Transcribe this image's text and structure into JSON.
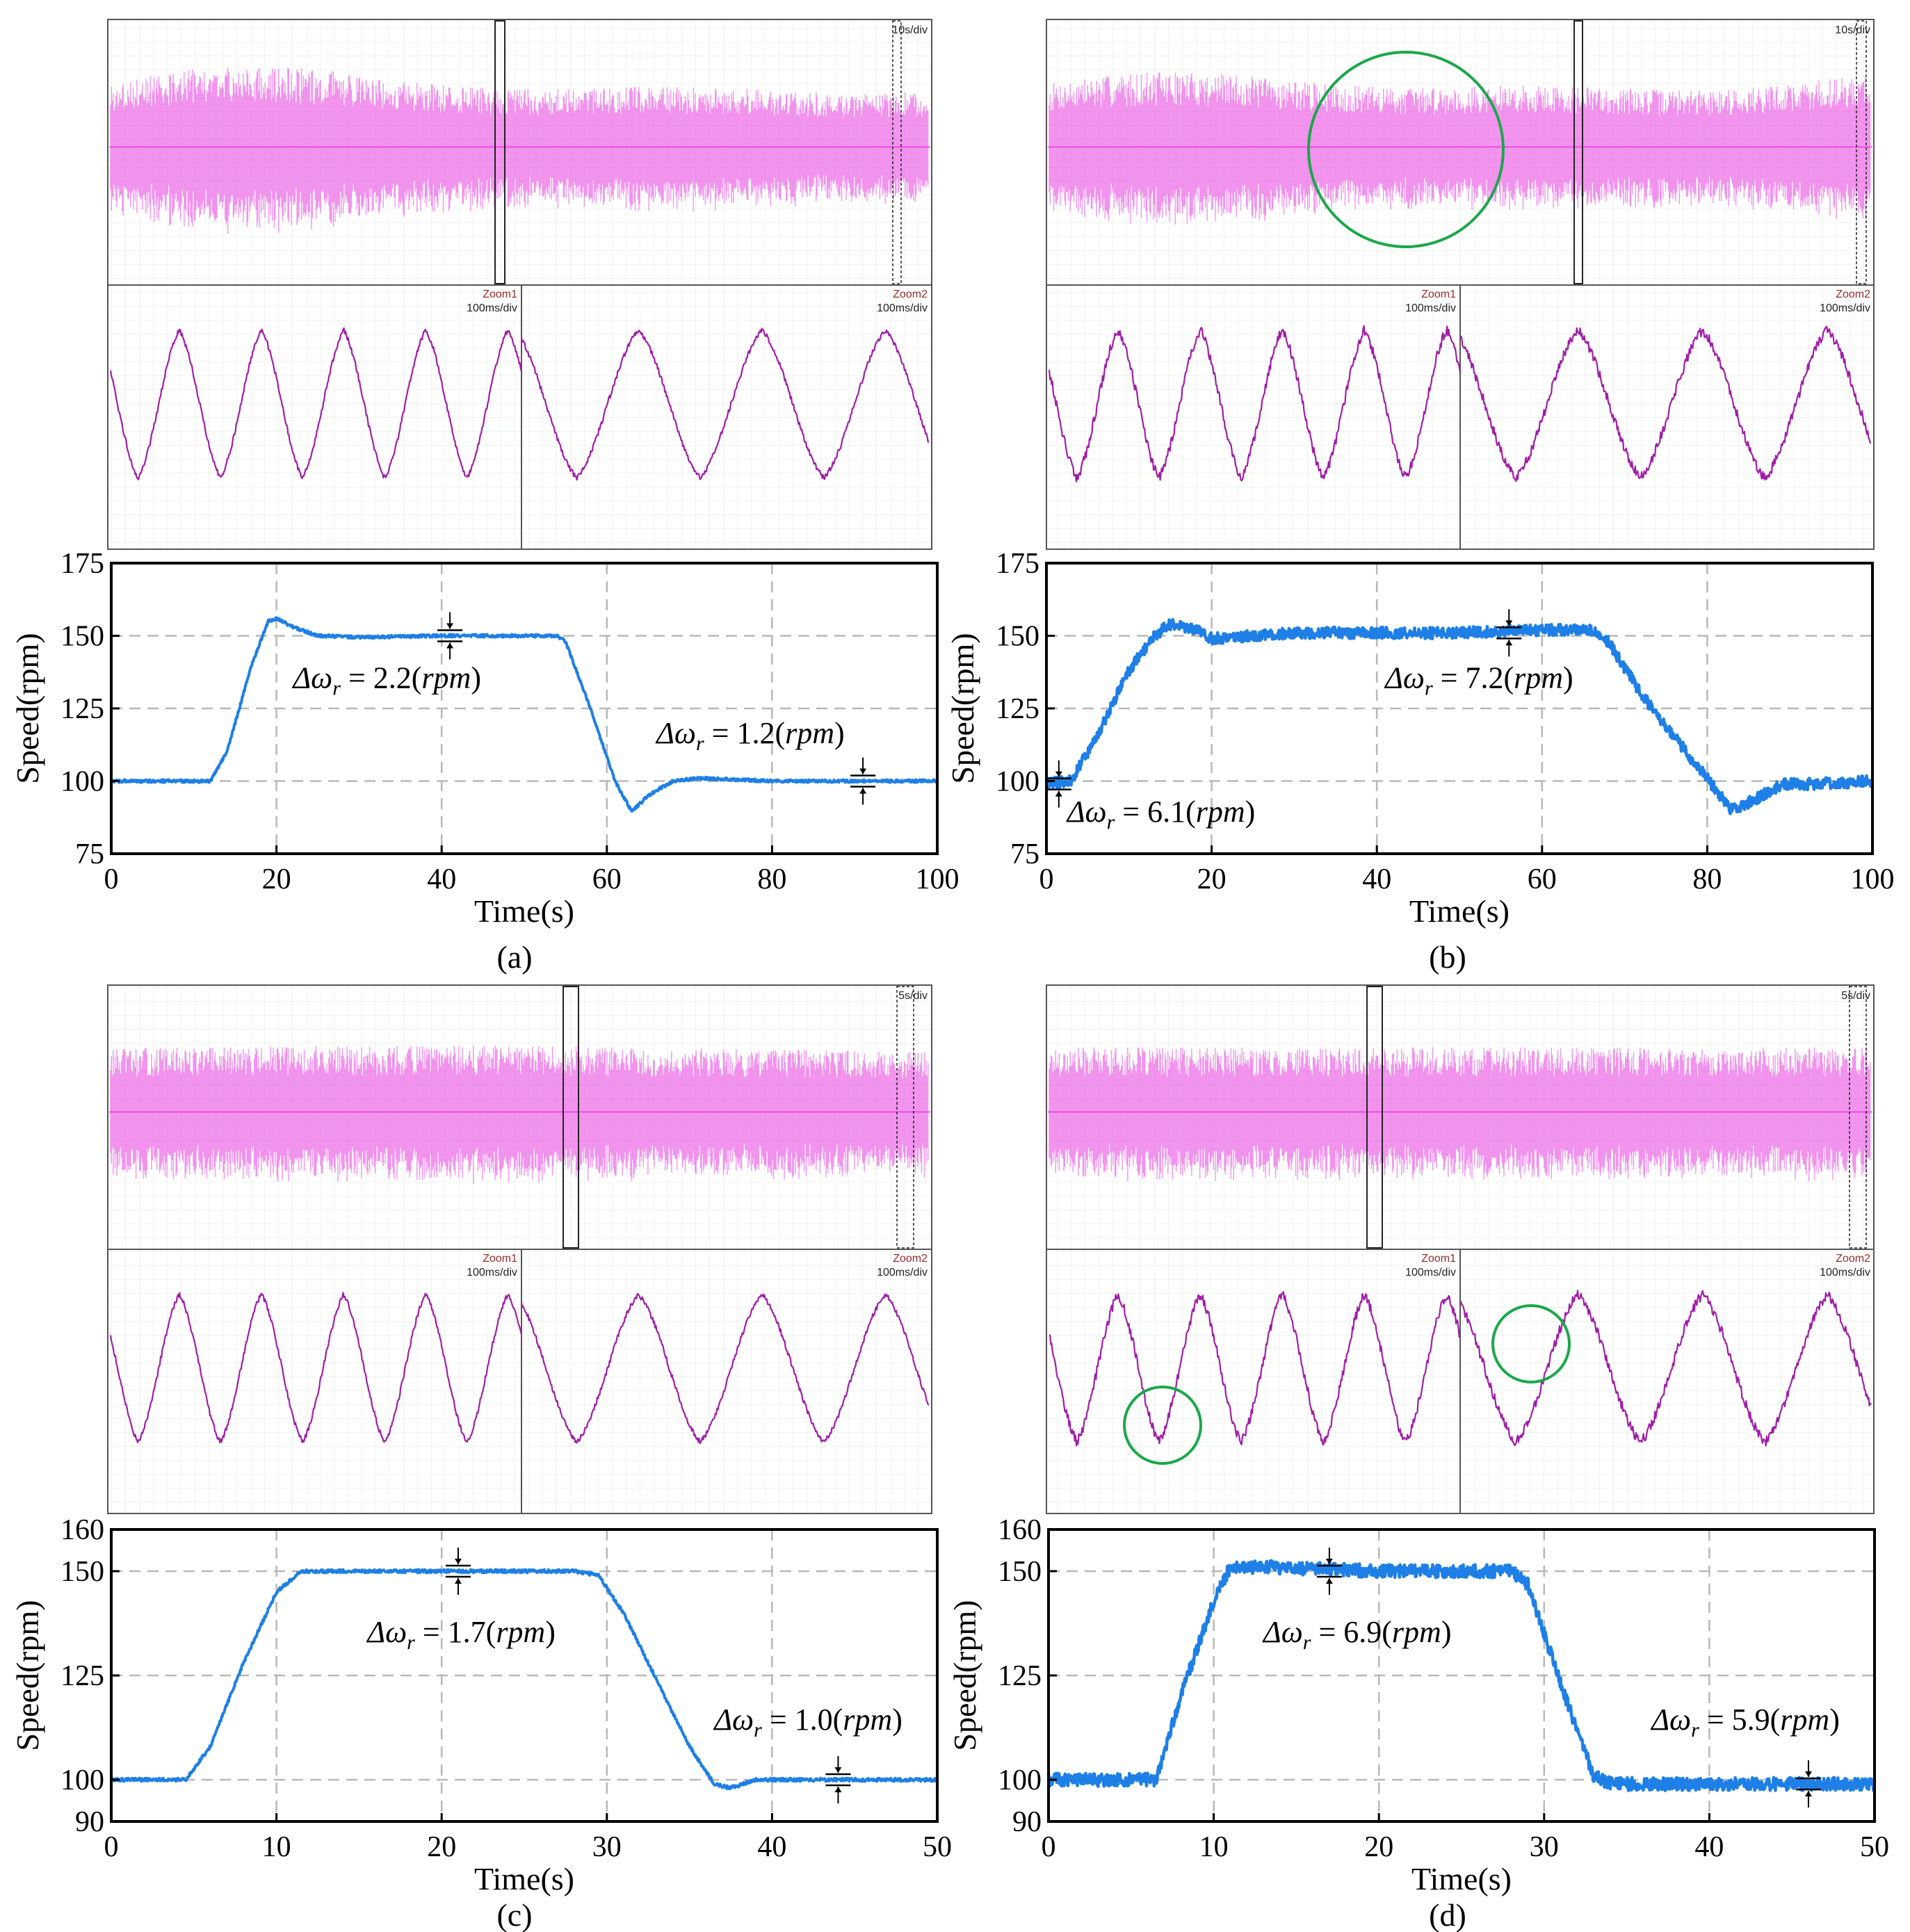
{
  "figure": {
    "description_free": true,
    "panels": [
      {
        "id": "a",
        "caption": "(a)",
        "scope": {
          "top_timebase": "10s/div",
          "zoom1_label": "Zoom1",
          "zoom1_timebase": "100ms/div",
          "zoom2_label": "Zoom2",
          "zoom2_timebase": "100ms/div"
        }
      },
      {
        "id": "b",
        "caption": "(b)",
        "scope": {
          "top_timebase": "10s/div",
          "zoom1_label": "Zoom1",
          "zoom1_timebase": "100ms/div",
          "zoom2_label": "Zoom2",
          "zoom2_timebase": "100ms/div"
        }
      },
      {
        "id": "c",
        "caption": "(c)",
        "scope": {
          "top_timebase": "5s/div",
          "zoom1_label": "Zoom1",
          "zoom1_timebase": "100ms/div",
          "zoom2_label": "Zoom2",
          "zoom2_timebase": "100ms/div"
        }
      },
      {
        "id": "d",
        "caption": "(d)",
        "scope": {
          "top_timebase": "5s/div",
          "zoom1_label": "Zoom1",
          "zoom1_timebase": "100ms/div",
          "zoom2_label": "Zoom2",
          "zoom2_timebase": "100ms/div"
        }
      }
    ]
  },
  "colors": {
    "current_trace": "#e83ce0",
    "zoom_trace": "#a01ea8",
    "speed_trace": "#1e7fe6",
    "grid_minor": "#dde8dd",
    "grid_dash": "#b8b8b8",
    "circle": "#1aa84a"
  },
  "chart_data": [
    {
      "panel": "a",
      "type": "line",
      "title": "",
      "xlabel": "Time(s)",
      "ylabel": "Speed(rpm)",
      "xlim": [
        0,
        100
      ],
      "ylim": [
        75,
        175
      ],
      "xticks": [
        0,
        20,
        40,
        60,
        80,
        100
      ],
      "yticks": [
        75,
        100,
        125,
        150,
        175
      ],
      "series": [
        {
          "name": "speed",
          "noise": 0.5,
          "x": [
            0,
            12,
            14,
            17,
            19,
            20,
            22,
            25,
            30,
            40,
            50,
            54,
            55,
            58,
            61,
            63,
            65,
            68,
            71,
            80,
            100
          ],
          "y": [
            100,
            100,
            110,
            140,
            155,
            156,
            153,
            150,
            149.5,
            150,
            150,
            150,
            148,
            125,
            100,
            89.5,
            95,
            100,
            101,
            100,
            100
          ]
        }
      ],
      "annotations": [
        {
          "text_prefix": "Δω",
          "sub": "r",
          "eq": " = 2.2(",
          "unit": "rpm",
          "close": ")",
          "x": 22,
          "y": 132,
          "marker_x": 41,
          "marker_y": 150
        },
        {
          "text_prefix": "Δω",
          "sub": "r",
          "eq": " = 1.2(",
          "unit": "rpm",
          "close": ")",
          "x": 66,
          "y": 113,
          "marker_x": 91,
          "marker_y": 100
        }
      ]
    },
    {
      "panel": "b",
      "type": "line",
      "title": "",
      "xlabel": "Time(s)",
      "ylabel": "Speed(rpm)",
      "xlim": [
        0,
        100
      ],
      "ylim": [
        75,
        175
      ],
      "xticks": [
        0,
        20,
        40,
        60,
        80,
        100
      ],
      "yticks": [
        75,
        100,
        125,
        150,
        175
      ],
      "series": [
        {
          "name": "speed",
          "noise": 2.0,
          "x": [
            0,
            3,
            6,
            10,
            13,
            15,
            18,
            20,
            25,
            30,
            40,
            50,
            60,
            66,
            68,
            72,
            78,
            83,
            86,
            89,
            93,
            100
          ],
          "y": [
            99,
            100,
            115,
            138,
            150,
            154,
            152,
            149,
            150,
            151,
            151,
            151,
            152,
            152,
            148,
            130,
            108,
            90,
            94,
            99,
            99,
            100
          ]
        }
      ],
      "annotations": [
        {
          "text_prefix": "Δω",
          "sub": "r",
          "eq": " = 7.2(",
          "unit": "rpm",
          "close": ")",
          "x": 41,
          "y": 132,
          "marker_x": 56,
          "marker_y": 151
        },
        {
          "text_prefix": "Δω",
          "sub": "r",
          "eq": " = 6.1(",
          "unit": "rpm",
          "close": ")",
          "x": 2.5,
          "y": 86,
          "marker_x": 1.5,
          "marker_y": 99
        }
      ]
    },
    {
      "panel": "c",
      "type": "line",
      "title": "",
      "xlabel": "Time(s)",
      "ylabel": "Speed(rpm)",
      "xlim": [
        0,
        50
      ],
      "ylim": [
        90,
        160
      ],
      "xticks": [
        0,
        10,
        20,
        30,
        40,
        50
      ],
      "yticks": [
        90,
        100,
        125,
        150,
        160
      ],
      "series": [
        {
          "name": "speed",
          "noise": 0.4,
          "x": [
            0,
            4.5,
            6,
            8,
            10,
            11.5,
            13,
            20,
            28,
            29.5,
            31,
            33,
            35,
            36.5,
            37.5,
            39,
            41,
            50
          ],
          "y": [
            100,
            100,
            108,
            128,
            145,
            150,
            150,
            150,
            150,
            149,
            140,
            124,
            108,
            99,
            98,
            100,
            100,
            100
          ]
        }
      ],
      "annotations": [
        {
          "text_prefix": "Δω",
          "sub": "r",
          "eq": " = 1.7(",
          "unit": "rpm",
          "close": ")",
          "x": 15.5,
          "y": 133,
          "marker_x": 21,
          "marker_y": 150
        },
        {
          "text_prefix": "Δω",
          "sub": "r",
          "eq": " = 1.0(",
          "unit": "rpm",
          "close": ")",
          "x": 36.5,
          "y": 112,
          "marker_x": 44,
          "marker_y": 100
        }
      ]
    },
    {
      "panel": "d",
      "type": "line",
      "title": "",
      "xlabel": "Time(s)",
      "ylabel": "Speed(rpm)",
      "xlim": [
        0,
        50
      ],
      "ylim": [
        90,
        160
      ],
      "xticks": [
        0,
        10,
        20,
        30,
        40,
        50
      ],
      "yticks": [
        90,
        100,
        125,
        150,
        160
      ],
      "series": [
        {
          "name": "speed",
          "noise": 1.6,
          "x": [
            0,
            6.5,
            8,
            10,
            11,
            13,
            20,
            28,
            29,
            31,
            33,
            34,
            36,
            50
          ],
          "y": [
            100,
            100,
            120,
            143,
            151,
            151,
            150,
            150,
            147,
            123,
            101,
            99,
            99,
            99
          ]
        }
      ],
      "annotations": [
        {
          "text_prefix": "Δω",
          "sub": "r",
          "eq": " = 6.9(",
          "unit": "rpm",
          "close": ")",
          "x": 13,
          "y": 133,
          "marker_x": 17,
          "marker_y": 150
        },
        {
          "text_prefix": "Δω",
          "sub": "r",
          "eq": " = 5.9(",
          "unit": "rpm",
          "close": ")",
          "x": 36.5,
          "y": 112,
          "marker_x": 46,
          "marker_y": 99
        }
      ]
    }
  ]
}
